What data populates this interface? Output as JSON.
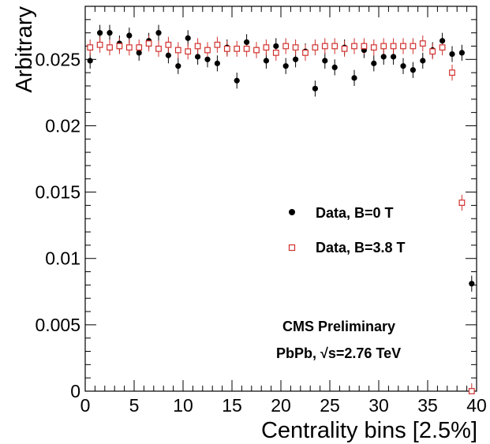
{
  "chart_data": {
    "type": "scatter",
    "xlabel": "Centrality bins [2.5%]",
    "ylabel": "Arbitrary",
    "xlim": [
      0,
      40
    ],
    "ylim": [
      0,
      0.029
    ],
    "x_ticks": [
      "0",
      "5",
      "10",
      "15",
      "20",
      "25",
      "30",
      "35",
      "40"
    ],
    "y_ticks": [
      "0",
      "0.005",
      "0.01",
      "0.015",
      "0.02",
      "0.025"
    ],
    "grid": false,
    "legend_position": "center-right",
    "annotations": [
      "CMS Preliminary",
      "PbPb, √s=2.76 TeV"
    ],
    "series": [
      {
        "name": "Data, B=0 T",
        "marker": "filled-circle",
        "color": "#000000",
        "x": [
          0.5,
          1.5,
          2.5,
          3.5,
          4.5,
          5.5,
          6.5,
          7.5,
          8.5,
          9.5,
          10.5,
          11.5,
          12.5,
          13.5,
          14.5,
          15.5,
          16.5,
          17.5,
          18.5,
          19.5,
          20.5,
          21.5,
          22.5,
          23.5,
          24.5,
          25.5,
          26.5,
          27.5,
          28.5,
          29.5,
          30.5,
          31.5,
          32.5,
          33.5,
          34.5,
          35.5,
          36.5,
          37.5,
          38.5,
          39.5
        ],
        "y": [
          0.0249,
          0.027,
          0.027,
          0.0262,
          0.0268,
          0.0255,
          0.0264,
          0.027,
          0.0253,
          0.0245,
          0.0266,
          0.0252,
          0.025,
          0.0247,
          0.0259,
          0.0234,
          0.0263,
          0.0257,
          0.0249,
          0.026,
          0.0245,
          0.025,
          0.0256,
          0.0228,
          0.0249,
          0.0244,
          0.0259,
          0.0236,
          0.0257,
          0.0247,
          0.0252,
          0.0252,
          0.0245,
          0.0242,
          0.0249,
          0.0257,
          0.0264,
          0.0254,
          0.0255,
          0.0081
        ],
        "yerr": 0.0006
      },
      {
        "name": "Data, B=3.8 T",
        "marker": "open-square",
        "color": "#d0312d",
        "x": [
          0.5,
          1.5,
          2.5,
          3.5,
          4.5,
          5.5,
          6.5,
          7.5,
          8.5,
          9.5,
          10.5,
          11.5,
          12.5,
          13.5,
          14.5,
          15.5,
          16.5,
          17.5,
          18.5,
          19.5,
          20.5,
          21.5,
          22.5,
          23.5,
          24.5,
          25.5,
          26.5,
          27.5,
          28.5,
          29.5,
          30.5,
          31.5,
          32.5,
          33.5,
          34.5,
          35.5,
          36.5,
          37.5,
          38.5,
          39.5
        ],
        "y": [
          0.0259,
          0.0261,
          0.0259,
          0.026,
          0.0259,
          0.0259,
          0.0262,
          0.0258,
          0.0261,
          0.0257,
          0.0256,
          0.026,
          0.0257,
          0.0261,
          0.0258,
          0.0258,
          0.0258,
          0.0257,
          0.0259,
          0.0255,
          0.026,
          0.0259,
          0.0255,
          0.0259,
          0.026,
          0.026,
          0.0258,
          0.026,
          0.026,
          0.0259,
          0.026,
          0.026,
          0.026,
          0.026,
          0.0262,
          0.0256,
          0.0259,
          0.024,
          0.0142,
          0.0
        ],
        "yerr": 0.0006
      }
    ]
  }
}
